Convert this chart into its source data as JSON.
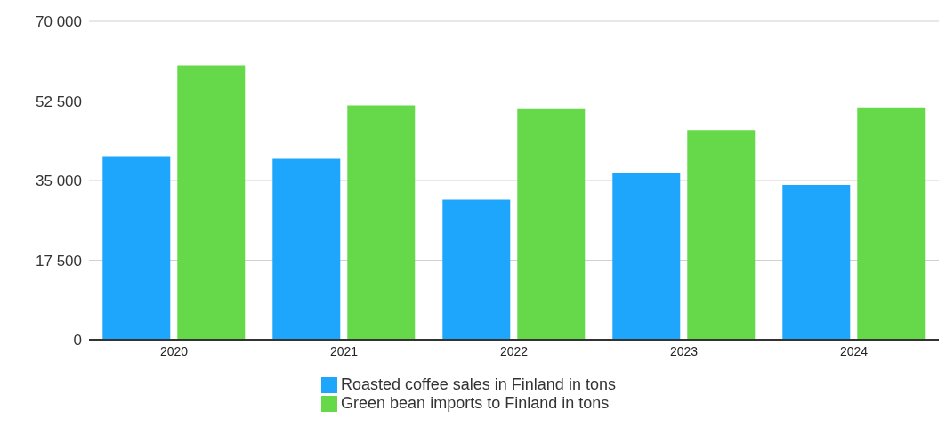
{
  "chart_data": {
    "type": "bar",
    "categories": [
      "2020",
      "2021",
      "2022",
      "2023",
      "2024"
    ],
    "series": [
      {
        "name": "Roasted coffee sales in Finland in tons",
        "color": "#1ea5fc",
        "values": [
          40400,
          39800,
          30800,
          36600,
          34000
        ]
      },
      {
        "name": "Green bean imports to Finland in tons",
        "color": "#66d94a",
        "values": [
          60300,
          51500,
          50900,
          46100,
          51100
        ]
      }
    ],
    "ylim": [
      0,
      70000
    ],
    "yticks": [
      {
        "value": 0,
        "label": "0"
      },
      {
        "value": 17500,
        "label": "17 500"
      },
      {
        "value": 35000,
        "label": "35 000"
      },
      {
        "value": 52500,
        "label": "52 500"
      },
      {
        "value": 70000,
        "label": "70 000"
      }
    ],
    "grid": "y",
    "legend": "bottom"
  }
}
